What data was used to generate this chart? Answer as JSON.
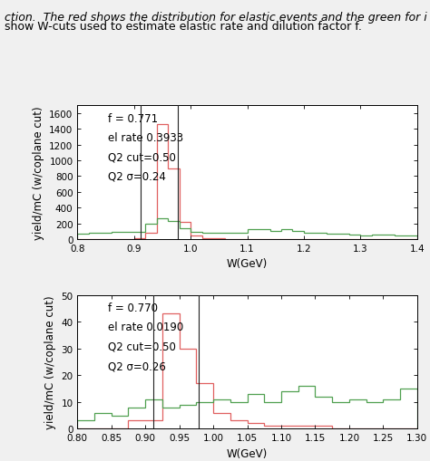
{
  "plot1": {
    "xlim": [
      0.8,
      1.4
    ],
    "ylim": [
      0,
      1700
    ],
    "yticks": [
      0,
      200,
      400,
      600,
      800,
      1000,
      1200,
      1400,
      1600
    ],
    "xticks": [
      0.8,
      0.9,
      1.0,
      1.1,
      1.2,
      1.3,
      1.4
    ],
    "xlabel": "W(GeV)",
    "ylabel": "yield/mC (w/coplane cut)",
    "annotations": [
      "f = 0.771",
      "el rate 0.3933",
      "Q2 cut=0.50",
      "Q2 σ=0.24"
    ],
    "vline1": 0.912,
    "vline2": 0.978,
    "red_edges": [
      0.8,
      0.82,
      0.84,
      0.86,
      0.88,
      0.9,
      0.92,
      0.94,
      0.96,
      0.98,
      1.0,
      1.02,
      1.04,
      1.06,
      1.08,
      1.1,
      1.12,
      1.14,
      1.16,
      1.18,
      1.2,
      1.22,
      1.24,
      1.26,
      1.28,
      1.3,
      1.32,
      1.34,
      1.36,
      1.38,
      1.4
    ],
    "red_vals": [
      0,
      0,
      0,
      0,
      0,
      10,
      80,
      1460,
      900,
      220,
      40,
      15,
      8,
      4,
      3,
      2,
      1,
      1,
      1,
      1,
      0,
      0,
      0,
      0,
      0,
      0,
      0,
      0,
      0,
      0
    ],
    "green_edges": [
      0.8,
      0.82,
      0.84,
      0.86,
      0.88,
      0.9,
      0.92,
      0.94,
      0.96,
      0.98,
      1.0,
      1.02,
      1.04,
      1.06,
      1.08,
      1.1,
      1.12,
      1.14,
      1.16,
      1.18,
      1.2,
      1.22,
      1.24,
      1.26,
      1.28,
      1.3,
      1.32,
      1.34,
      1.36,
      1.38,
      1.4
    ],
    "green_vals": [
      65,
      80,
      85,
      95,
      90,
      95,
      200,
      260,
      230,
      140,
      90,
      80,
      85,
      80,
      80,
      130,
      130,
      100,
      130,
      100,
      80,
      85,
      70,
      65,
      60,
      50,
      55,
      55,
      50,
      50
    ]
  },
  "plot2": {
    "xlim": [
      0.8,
      1.3
    ],
    "ylim": [
      0,
      50
    ],
    "yticks": [
      0,
      10,
      20,
      30,
      40,
      50
    ],
    "xticks": [
      0.8,
      0.85,
      0.9,
      0.95,
      1.0,
      1.05,
      1.1,
      1.15,
      1.2,
      1.25,
      1.3
    ],
    "xlabel": "W(GeV)",
    "ylabel": "yield/mC (w/coplane cut)",
    "annotations": [
      "f = 0.770",
      "el rate 0.0190",
      "Q2 cut=0.50",
      "Q2 σ=0.26"
    ],
    "vline1": 0.912,
    "vline2": 0.978,
    "red_edges": [
      0.8,
      0.825,
      0.85,
      0.875,
      0.9,
      0.925,
      0.95,
      0.975,
      1.0,
      1.025,
      1.05,
      1.075,
      1.1,
      1.125,
      1.15,
      1.175,
      1.2,
      1.225,
      1.25,
      1.275,
      1.3
    ],
    "red_vals": [
      0,
      0,
      0,
      3,
      3,
      43,
      30,
      17,
      6,
      3,
      2,
      1,
      1,
      1,
      1,
      0,
      0,
      0,
      0,
      0
    ],
    "green_edges": [
      0.8,
      0.825,
      0.85,
      0.875,
      0.9,
      0.925,
      0.95,
      0.975,
      1.0,
      1.025,
      1.05,
      1.075,
      1.1,
      1.125,
      1.15,
      1.175,
      1.2,
      1.225,
      1.25,
      1.275,
      1.3
    ],
    "green_vals": [
      3,
      6,
      5,
      8,
      11,
      8,
      9,
      10,
      11,
      10,
      13,
      10,
      14,
      16,
      12,
      10,
      11,
      10,
      11,
      15
    ]
  },
  "caption_lines": [
    "ction.  The red shows the distribution for elastic events and the green for i",
    "show W-cuts used to estimate elastic rate and dilution factor f."
  ],
  "red_color": "#e06060",
  "green_color": "#50a050",
  "vline_color": "#202020",
  "bg_color": "#f0f0f0",
  "plot_bg": "#ffffff",
  "text_color": "#000000",
  "fontsize_annot": 8.5,
  "fontsize_label": 8.5,
  "fontsize_tick": 7.5,
  "fontsize_caption": 9
}
